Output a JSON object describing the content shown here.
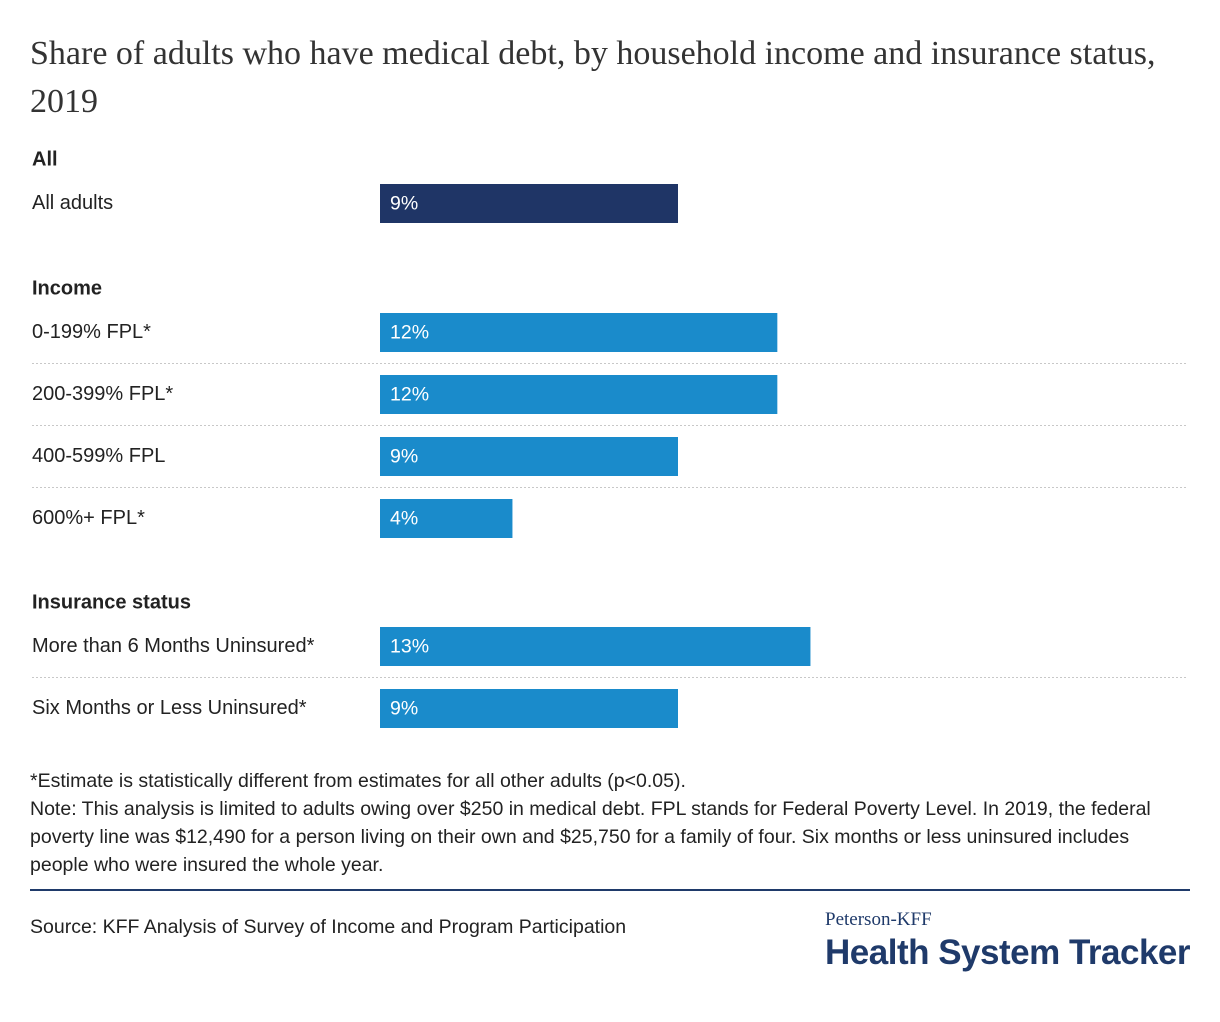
{
  "chart_data": {
    "type": "bar",
    "orientation": "horizontal",
    "title": "Share of adults who have medical debt, by household income and insurance status, 2019",
    "value_suffix": "%",
    "xlim": [
      0,
      17
    ],
    "grid": false,
    "groups": [
      {
        "label": "All",
        "bars": [
          {
            "category": "All adults",
            "value": 9,
            "label": "9%"
          }
        ]
      },
      {
        "label": "Income",
        "bars": [
          {
            "category": "0-199% FPL*",
            "value": 12,
            "label": "12%"
          },
          {
            "category": "200-399% FPL*",
            "value": 12,
            "label": "12%"
          },
          {
            "category": "400-599% FPL",
            "value": 9,
            "label": "9%"
          },
          {
            "category": "600%+ FPL*",
            "value": 4,
            "label": "4%"
          }
        ]
      },
      {
        "label": "Insurance status",
        "bars": [
          {
            "category": "More than 6 Months Uninsured*",
            "value": 13,
            "label": "13%"
          },
          {
            "category": "Six Months or Less Uninsured*",
            "value": 9,
            "label": "9%"
          }
        ]
      }
    ],
    "colors": {
      "all_bar": "#1f3566",
      "group_bar": "#1a8bcb",
      "bar_label": "#ffffff",
      "separator": "#c8c8c8"
    }
  },
  "footnotes": {
    "significance": "*Estimate is statistically different from estimates for all other adults (p<0.05).",
    "note": "Note: This analysis is limited to adults owing over $250 in medical debt. FPL stands for Federal Poverty Level. In 2019, the federal poverty line was $12,490 for a person living on their own and $25,750 for a family of four. Six months or less uninsured includes people who were insured the whole year."
  },
  "source": "Source: KFF Analysis of Survey of Income and Program Participation",
  "logo": {
    "small": "Peterson-KFF",
    "big": "Health System Tracker"
  }
}
